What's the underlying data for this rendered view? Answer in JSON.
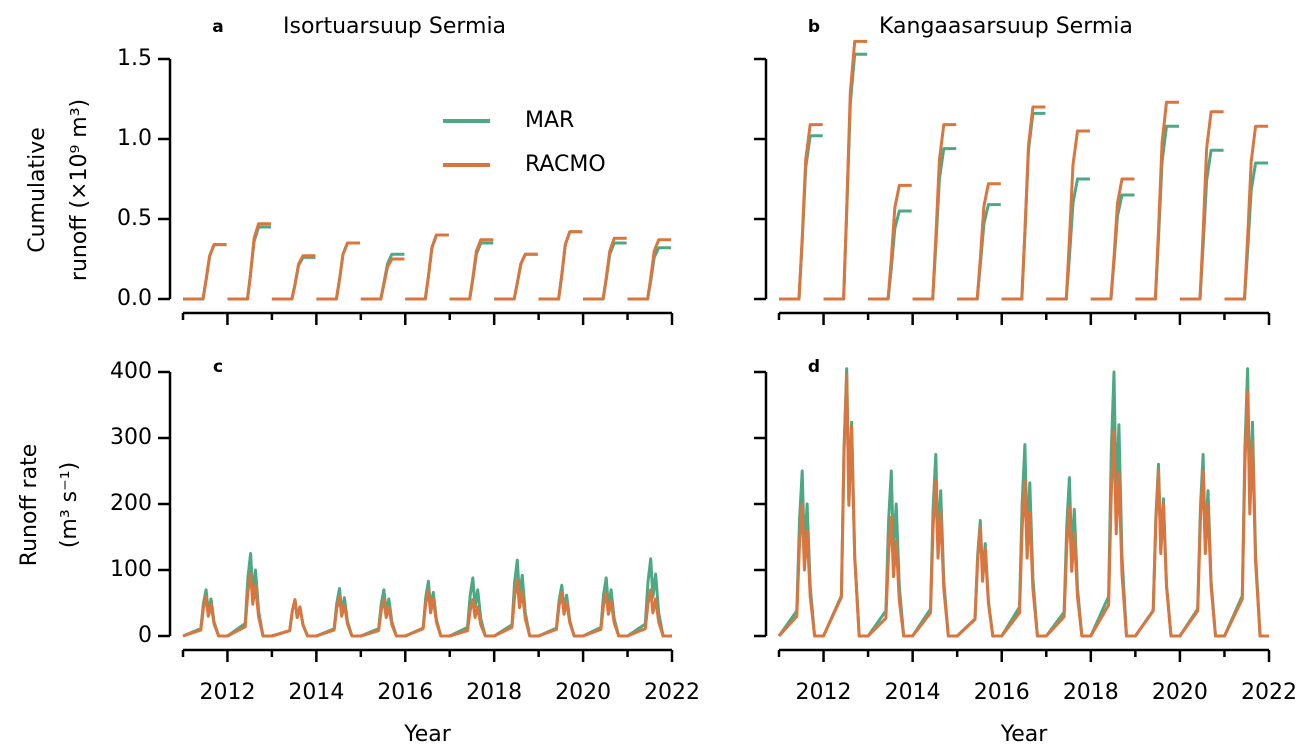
{
  "chart_data": [
    {
      "type": "line",
      "panel": "a",
      "title": "Isortuarsuup Sermia",
      "ylabel": [
        "Cumulative",
        "runoff (×10⁹ m³)"
      ],
      "legend": "upper center",
      "show_xtick_labels": false,
      "show_ytick_labels": true,
      "xlim": [
        2011,
        2022
      ],
      "xticks": [
        2012,
        2014,
        2016,
        2018,
        2020,
        2022
      ],
      "xminor_ticks": [
        2011,
        2013,
        2015,
        2017,
        2019,
        2021
      ],
      "ylim": [
        0,
        1.5
      ],
      "yticks": [
        {
          "value": 0,
          "label": "0.0"
        },
        0.5,
        {
          "value": 1,
          "label": "1.0"
        },
        1.5
      ],
      "x": [
        2011,
        2011.45,
        2011.52,
        2011.6,
        2011.7,
        2011.98,
        2011.99,
        2012,
        2012.45,
        2012.52,
        2012.6,
        2012.7,
        2012.98,
        2012.99,
        2013,
        2013.45,
        2013.52,
        2013.6,
        2013.7,
        2013.98,
        2013.99,
        2014,
        2014.45,
        2014.52,
        2014.6,
        2014.7,
        2014.98,
        2014.99,
        2015,
        2015.45,
        2015.52,
        2015.6,
        2015.7,
        2015.98,
        2015.99,
        2016,
        2016.45,
        2016.52,
        2016.6,
        2016.7,
        2016.98,
        2016.99,
        2017,
        2017.45,
        2017.52,
        2017.6,
        2017.7,
        2017.98,
        2017.99,
        2018,
        2018.45,
        2018.52,
        2018.6,
        2018.7,
        2018.98,
        2018.99,
        2019,
        2019.45,
        2019.52,
        2019.6,
        2019.7,
        2019.98,
        2019.99,
        2020,
        2020.45,
        2020.52,
        2020.6,
        2020.7,
        2020.98,
        2020.99,
        2021,
        2021.45,
        2021.52,
        2021.6,
        2021.7,
        2021.98,
        2021.99
      ],
      "series": [
        {
          "name": "MAR",
          "color": "#4ea883",
          "values": [
            0,
            0,
            0.12,
            0.27,
            0.34,
            0.34,
            null,
            0,
            0,
            0.16,
            0.36,
            0.45,
            0.45,
            null,
            0,
            0,
            0.09,
            0.21,
            0.26,
            0.26,
            null,
            0,
            0,
            0.12,
            0.28,
            0.35,
            0.35,
            null,
            0,
            0,
            0.1,
            0.22,
            0.28,
            0.28,
            null,
            0,
            0,
            0.14,
            0.32,
            0.4,
            0.4,
            null,
            0,
            0,
            0.12,
            0.28,
            0.35,
            0.35,
            null,
            0,
            0,
            0.1,
            0.22,
            0.28,
            0.28,
            null,
            0,
            0,
            0.15,
            0.34,
            0.42,
            0.42,
            null,
            0,
            0,
            0.12,
            0.28,
            0.35,
            0.35,
            null,
            0,
            0,
            0.11,
            0.26,
            0.32,
            0.32,
            null
          ]
        },
        {
          "name": "RACMO",
          "color": "#d9763f",
          "values": [
            0,
            0,
            0.12,
            0.27,
            0.34,
            0.34,
            null,
            0,
            0,
            0.16,
            0.38,
            0.47,
            0.47,
            null,
            0,
            0,
            0.09,
            0.22,
            0.27,
            0.27,
            null,
            0,
            0,
            0.12,
            0.28,
            0.35,
            0.35,
            null,
            0,
            0,
            0.09,
            0.2,
            0.25,
            0.25,
            null,
            0,
            0,
            0.14,
            0.32,
            0.4,
            0.4,
            null,
            0,
            0,
            0.13,
            0.3,
            0.37,
            0.37,
            null,
            0,
            0,
            0.1,
            0.22,
            0.28,
            0.28,
            null,
            0,
            0,
            0.15,
            0.34,
            0.42,
            0.42,
            null,
            0,
            0,
            0.13,
            0.3,
            0.38,
            0.38,
            null,
            0,
            0,
            0.13,
            0.3,
            0.37,
            0.37,
            null
          ]
        }
      ]
    },
    {
      "type": "line",
      "panel": "b",
      "title": "Kangaasarsuup Sermia",
      "show_xtick_labels": false,
      "show_ytick_labels": false,
      "xlim": [
        2011,
        2022
      ],
      "xticks": [
        2012,
        2014,
        2016,
        2018,
        2020,
        2022
      ],
      "xminor_ticks": [
        2011,
        2013,
        2015,
        2017,
        2019,
        2021
      ],
      "ylim": [
        0,
        1.5
      ],
      "yticks": [
        0,
        0.5,
        1,
        1.5
      ],
      "x": [
        2011,
        2011.45,
        2011.52,
        2011.6,
        2011.7,
        2011.98,
        2011.99,
        2012,
        2012.45,
        2012.52,
        2012.6,
        2012.7,
        2012.98,
        2012.99,
        2013,
        2013.45,
        2013.52,
        2013.6,
        2013.7,
        2013.98,
        2013.99,
        2014,
        2014.45,
        2014.52,
        2014.6,
        2014.7,
        2014.98,
        2014.99,
        2015,
        2015.45,
        2015.52,
        2015.6,
        2015.7,
        2015.98,
        2015.99,
        2016,
        2016.45,
        2016.52,
        2016.6,
        2016.7,
        2016.98,
        2016.99,
        2017,
        2017.45,
        2017.52,
        2017.6,
        2017.7,
        2017.98,
        2017.99,
        2018,
        2018.45,
        2018.52,
        2018.6,
        2018.7,
        2018.98,
        2018.99,
        2019,
        2019.45,
        2019.52,
        2019.6,
        2019.7,
        2019.98,
        2019.99,
        2020,
        2020.45,
        2020.52,
        2020.6,
        2020.7,
        2020.98,
        2020.99,
        2021,
        2021.45,
        2021.52,
        2021.6,
        2021.7,
        2021.98,
        2021.99
      ],
      "series": [
        {
          "name": "MAR",
          "color": "#4ea883",
          "values": [
            0,
            0,
            0.36,
            0.82,
            1.02,
            1.02,
            null,
            0,
            0,
            0.54,
            1.22,
            1.53,
            1.53,
            null,
            0,
            0,
            0.19,
            0.44,
            0.55,
            0.55,
            null,
            0,
            0,
            0.33,
            0.75,
            0.94,
            0.94,
            null,
            0,
            0,
            0.21,
            0.47,
            0.59,
            0.59,
            null,
            0,
            0,
            0.41,
            0.93,
            1.16,
            1.16,
            null,
            0,
            0,
            0.26,
            0.6,
            0.75,
            0.75,
            null,
            0,
            0,
            0.23,
            0.52,
            0.65,
            0.65,
            null,
            0,
            0,
            0.38,
            0.86,
            1.08,
            1.08,
            null,
            0,
            0,
            0.33,
            0.74,
            0.93,
            0.93,
            null,
            0,
            0,
            0.3,
            0.68,
            0.85,
            0.85,
            null
          ]
        },
        {
          "name": "RACMO",
          "color": "#d9763f",
          "values": [
            0,
            0,
            0.38,
            0.87,
            1.09,
            1.09,
            null,
            0,
            0,
            0.56,
            1.29,
            1.61,
            1.61,
            null,
            0,
            0,
            0.25,
            0.57,
            0.71,
            0.71,
            null,
            0,
            0,
            0.38,
            0.87,
            1.09,
            1.09,
            null,
            0,
            0,
            0.25,
            0.58,
            0.72,
            0.72,
            null,
            0,
            0,
            0.42,
            0.96,
            1.2,
            1.2,
            null,
            0,
            0,
            0.37,
            0.84,
            1.05,
            1.05,
            null,
            0,
            0,
            0.26,
            0.6,
            0.75,
            0.75,
            null,
            0,
            0,
            0.43,
            0.98,
            1.23,
            1.23,
            null,
            0,
            0,
            0.41,
            0.94,
            1.17,
            1.17,
            null,
            0,
            0,
            0.38,
            0.86,
            1.08,
            1.08,
            null
          ]
        }
      ]
    },
    {
      "type": "line",
      "panel": "c",
      "ylabel": [
        "Runoff rate",
        "(m³ s⁻¹)"
      ],
      "xlabel": "Year",
      "show_xtick_labels": true,
      "show_ytick_labels": true,
      "xlim": [
        2011,
        2022
      ],
      "xticks": [
        2012,
        2014,
        2016,
        2018,
        2020,
        2022
      ],
      "xminor_ticks": [
        2011,
        2013,
        2015,
        2017,
        2019,
        2021
      ],
      "ylim": [
        0,
        400
      ],
      "yticks": [
        0,
        100,
        200,
        300,
        400
      ],
      "x": [
        2011,
        2011.4,
        2011.46,
        2011.52,
        2011.57,
        2011.63,
        2011.7,
        2011.8,
        2012,
        2012.4,
        2012.46,
        2012.52,
        2012.57,
        2012.63,
        2012.7,
        2012.8,
        2013,
        2013.4,
        2013.46,
        2013.52,
        2013.57,
        2013.63,
        2013.7,
        2013.8,
        2014,
        2014.4,
        2014.46,
        2014.52,
        2014.57,
        2014.63,
        2014.7,
        2014.8,
        2015,
        2015.4,
        2015.46,
        2015.52,
        2015.57,
        2015.63,
        2015.7,
        2015.8,
        2016,
        2016.4,
        2016.46,
        2016.52,
        2016.57,
        2016.63,
        2016.7,
        2016.8,
        2017,
        2017.4,
        2017.46,
        2017.52,
        2017.57,
        2017.63,
        2017.7,
        2017.8,
        2018,
        2018.4,
        2018.46,
        2018.52,
        2018.57,
        2018.63,
        2018.7,
        2018.8,
        2019,
        2019.4,
        2019.46,
        2019.52,
        2019.57,
        2019.63,
        2019.7,
        2019.8,
        2020,
        2020.4,
        2020.46,
        2020.52,
        2020.57,
        2020.63,
        2020.7,
        2020.8,
        2021,
        2021.4,
        2021.46,
        2021.52,
        2021.57,
        2021.63,
        2021.7,
        2021.8,
        2022
      ],
      "series": [
        {
          "name": "MAR",
          "color": "#4ea883",
          "values": [
            0,
            11,
            49,
            70,
            35,
            56,
            21,
            0,
            0,
            19,
            88,
            125,
            63,
            100,
            38,
            0,
            0,
            8,
            39,
            55,
            28,
            44,
            17,
            0,
            0,
            11,
            50,
            72,
            36,
            58,
            22,
            0,
            0,
            11,
            49,
            70,
            35,
            56,
            21,
            0,
            0,
            12,
            58,
            83,
            42,
            66,
            25,
            0,
            0,
            13,
            62,
            88,
            44,
            70,
            26,
            0,
            0,
            17,
            81,
            115,
            58,
            92,
            35,
            0,
            0,
            12,
            54,
            77,
            39,
            62,
            23,
            0,
            0,
            13,
            62,
            88,
            44,
            70,
            26,
            0,
            0,
            18,
            82,
            117,
            59,
            94,
            35,
            0,
            0
          ]
        },
        {
          "name": "RACMO",
          "color": "#d9763f",
          "values": [
            0,
            9,
            42,
            60,
            30,
            48,
            18,
            0,
            0,
            14,
            67,
            95,
            48,
            76,
            29,
            0,
            0,
            8,
            39,
            55,
            28,
            44,
            17,
            0,
            0,
            9,
            42,
            60,
            30,
            48,
            18,
            0,
            0,
            8,
            39,
            55,
            28,
            44,
            17,
            0,
            0,
            11,
            49,
            70,
            35,
            56,
            21,
            0,
            0,
            8,
            39,
            55,
            28,
            44,
            17,
            0,
            0,
            13,
            60,
            85,
            43,
            68,
            26,
            0,
            0,
            10,
            46,
            65,
            33,
            52,
            20,
            0,
            0,
            10,
            46,
            65,
            33,
            52,
            20,
            0,
            0,
            11,
            49,
            70,
            35,
            56,
            21,
            0,
            0
          ]
        }
      ]
    },
    {
      "type": "line",
      "panel": "d",
      "xlabel": "Year",
      "show_xtick_labels": true,
      "show_ytick_labels": false,
      "xlim": [
        2011,
        2022
      ],
      "xticks": [
        2012,
        2014,
        2016,
        2018,
        2020,
        2022
      ],
      "xminor_ticks": [
        2011,
        2013,
        2015,
        2017,
        2019,
        2021
      ],
      "ylim": [
        0,
        400
      ],
      "yticks": [
        0,
        100,
        200,
        300,
        400
      ],
      "x": [
        2011,
        2011.4,
        2011.46,
        2011.52,
        2011.57,
        2011.63,
        2011.7,
        2011.8,
        2012,
        2012.4,
        2012.46,
        2012.52,
        2012.57,
        2012.63,
        2012.7,
        2012.8,
        2013,
        2013.4,
        2013.46,
        2013.52,
        2013.57,
        2013.63,
        2013.7,
        2013.8,
        2014,
        2014.4,
        2014.46,
        2014.52,
        2014.57,
        2014.63,
        2014.7,
        2014.8,
        2015,
        2015.4,
        2015.46,
        2015.52,
        2015.57,
        2015.63,
        2015.7,
        2015.8,
        2016,
        2016.4,
        2016.46,
        2016.52,
        2016.57,
        2016.63,
        2016.7,
        2016.8,
        2017,
        2017.4,
        2017.46,
        2017.52,
        2017.57,
        2017.63,
        2017.7,
        2017.8,
        2018,
        2018.4,
        2018.46,
        2018.52,
        2018.57,
        2018.63,
        2018.7,
        2018.8,
        2019,
        2019.4,
        2019.46,
        2019.52,
        2019.57,
        2019.63,
        2019.7,
        2019.8,
        2020,
        2020.4,
        2020.46,
        2020.52,
        2020.57,
        2020.63,
        2020.7,
        2020.8,
        2021,
        2021.4,
        2021.46,
        2021.52,
        2021.57,
        2021.63,
        2021.7,
        2021.8,
        2022
      ],
      "series": [
        {
          "name": "MAR",
          "color": "#4ea883",
          "values": [
            0,
            38,
            175,
            250,
            125,
            200,
            75,
            0,
            0,
            61,
            284,
            405,
            203,
            324,
            122,
            0,
            0,
            38,
            175,
            250,
            125,
            200,
            75,
            0,
            0,
            41,
            193,
            275,
            138,
            220,
            83,
            0,
            0,
            26,
            123,
            175,
            88,
            140,
            53,
            0,
            0,
            44,
            203,
            290,
            145,
            232,
            87,
            0,
            0,
            36,
            168,
            240,
            120,
            192,
            72,
            0,
            0,
            60,
            280,
            400,
            200,
            320,
            120,
            0,
            0,
            39,
            182,
            260,
            130,
            208,
            78,
            0,
            0,
            41,
            193,
            275,
            138,
            220,
            83,
            0,
            0,
            61,
            284,
            405,
            203,
            324,
            122,
            0,
            0
          ]
        },
        {
          "name": "RACMO",
          "color": "#d9763f",
          "values": [
            0,
            30,
            140,
            200,
            100,
            160,
            60,
            0,
            0,
            59,
            277,
            395,
            198,
            316,
            119,
            0,
            0,
            27,
            126,
            180,
            90,
            144,
            54,
            0,
            0,
            35,
            165,
            235,
            118,
            188,
            71,
            0,
            0,
            25,
            116,
            165,
            83,
            132,
            50,
            0,
            0,
            35,
            165,
            235,
            118,
            188,
            71,
            0,
            0,
            29,
            137,
            195,
            98,
            156,
            59,
            0,
            0,
            47,
            217,
            310,
            155,
            248,
            93,
            0,
            0,
            38,
            175,
            250,
            125,
            200,
            75,
            0,
            0,
            38,
            175,
            250,
            125,
            200,
            75,
            0,
            0,
            56,
            259,
            370,
            185,
            296,
            111,
            0,
            0
          ]
        }
      ]
    }
  ]
}
